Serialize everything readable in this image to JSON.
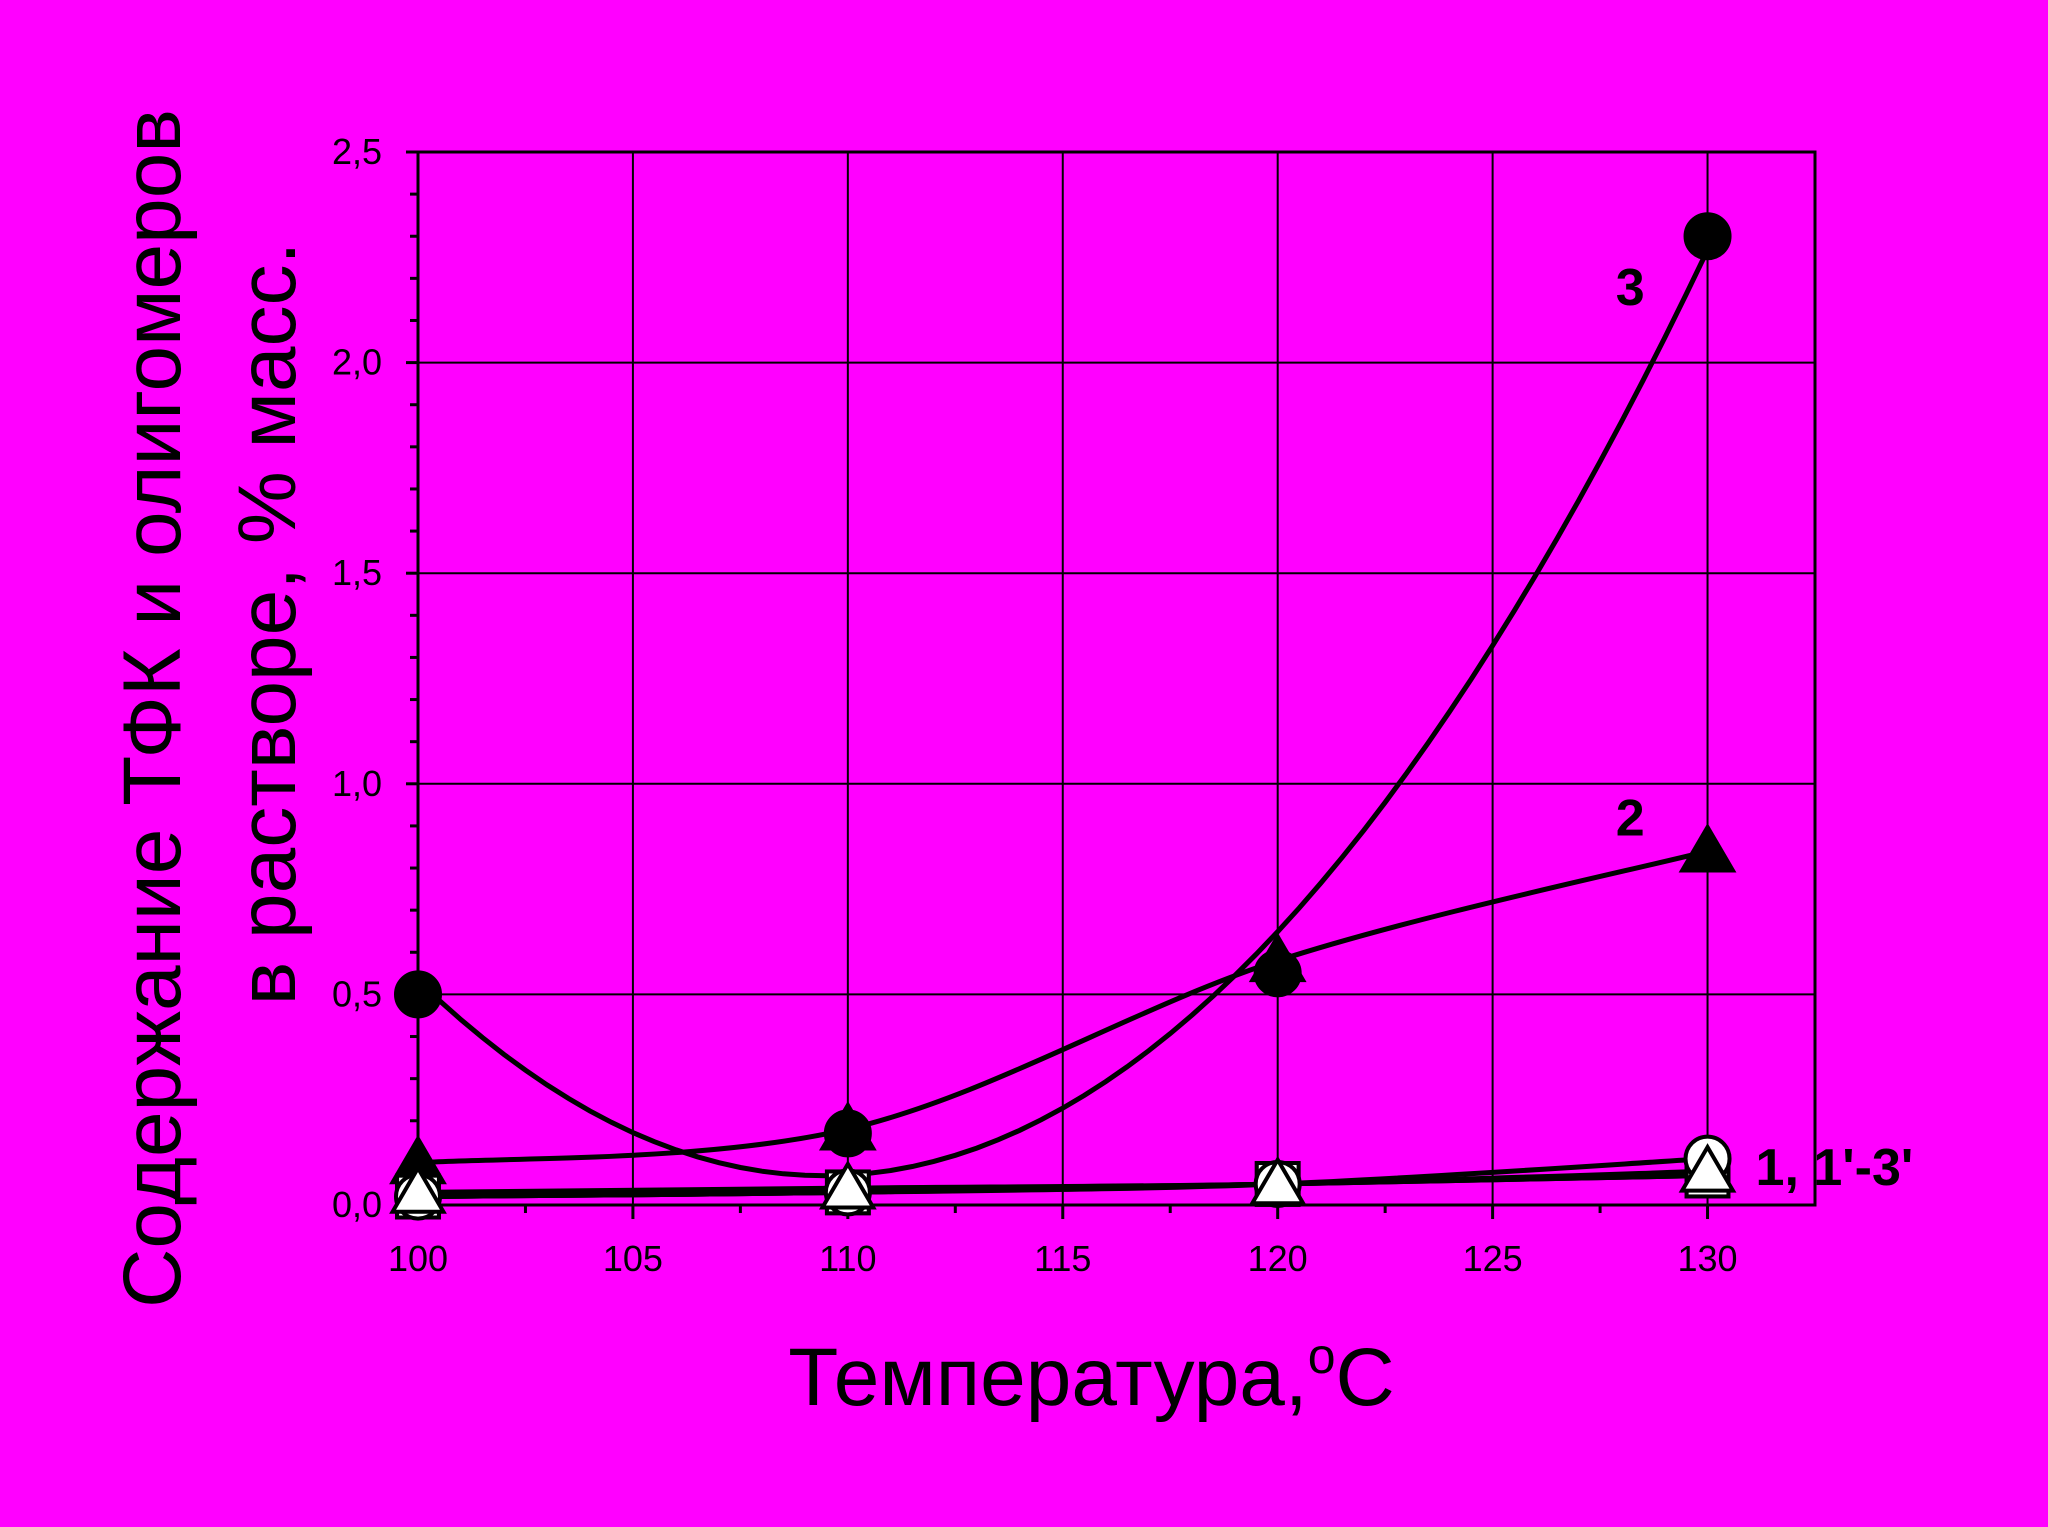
{
  "chart_data": {
    "type": "line",
    "xlabel_main": "Температура,",
    "xlabel_deg": "o",
    "xlabel_unit": "C",
    "ylabel_line1": "Содержание ТФК и олигомеров",
    "ylabel_line2": "в растворе, % масс.",
    "xlim": [
      100,
      132.5
    ],
    "ylim": [
      0,
      2.5
    ],
    "x_ticks": [
      "100",
      "105",
      "110",
      "115",
      "120",
      "125",
      "130"
    ],
    "y_ticks": [
      "0,0",
      "0,5",
      "1,0",
      "1,5",
      "2,0",
      "2,5"
    ],
    "grid": true,
    "series": [
      {
        "name": "3",
        "marker": "filled-circle",
        "x": [
          100,
          110,
          120,
          130
        ],
        "y": [
          0.5,
          0.17,
          0.55,
          2.3
        ]
      },
      {
        "name": "2",
        "marker": "filled-triangle",
        "x": [
          100,
          110,
          120,
          130
        ],
        "y": [
          0.1,
          0.18,
          0.58,
          0.84
        ]
      },
      {
        "name": "1",
        "marker": "filled-square",
        "x": [
          100,
          110,
          120,
          130
        ],
        "y": [
          0.02,
          0.03,
          0.05,
          0.07
        ]
      },
      {
        "name": "1'",
        "marker": "open-circle",
        "x": [
          100,
          110,
          120,
          130
        ],
        "y": [
          0.02,
          0.03,
          0.05,
          0.11
        ]
      },
      {
        "name": "2'",
        "marker": "open-square",
        "x": [
          100,
          110,
          120,
          130
        ],
        "y": [
          0.02,
          0.03,
          0.05,
          0.07
        ]
      },
      {
        "name": "3'",
        "marker": "open-triangle",
        "x": [
          100,
          110,
          120,
          130
        ],
        "y": [
          0.03,
          0.04,
          0.05,
          0.08
        ]
      }
    ],
    "curve_labels": [
      "3",
      "2",
      "1, 1'-3'"
    ],
    "colors": {
      "background": "#FF00FF",
      "ink": "#000000",
      "open_marker_fill": "#FFFFFF"
    }
  }
}
